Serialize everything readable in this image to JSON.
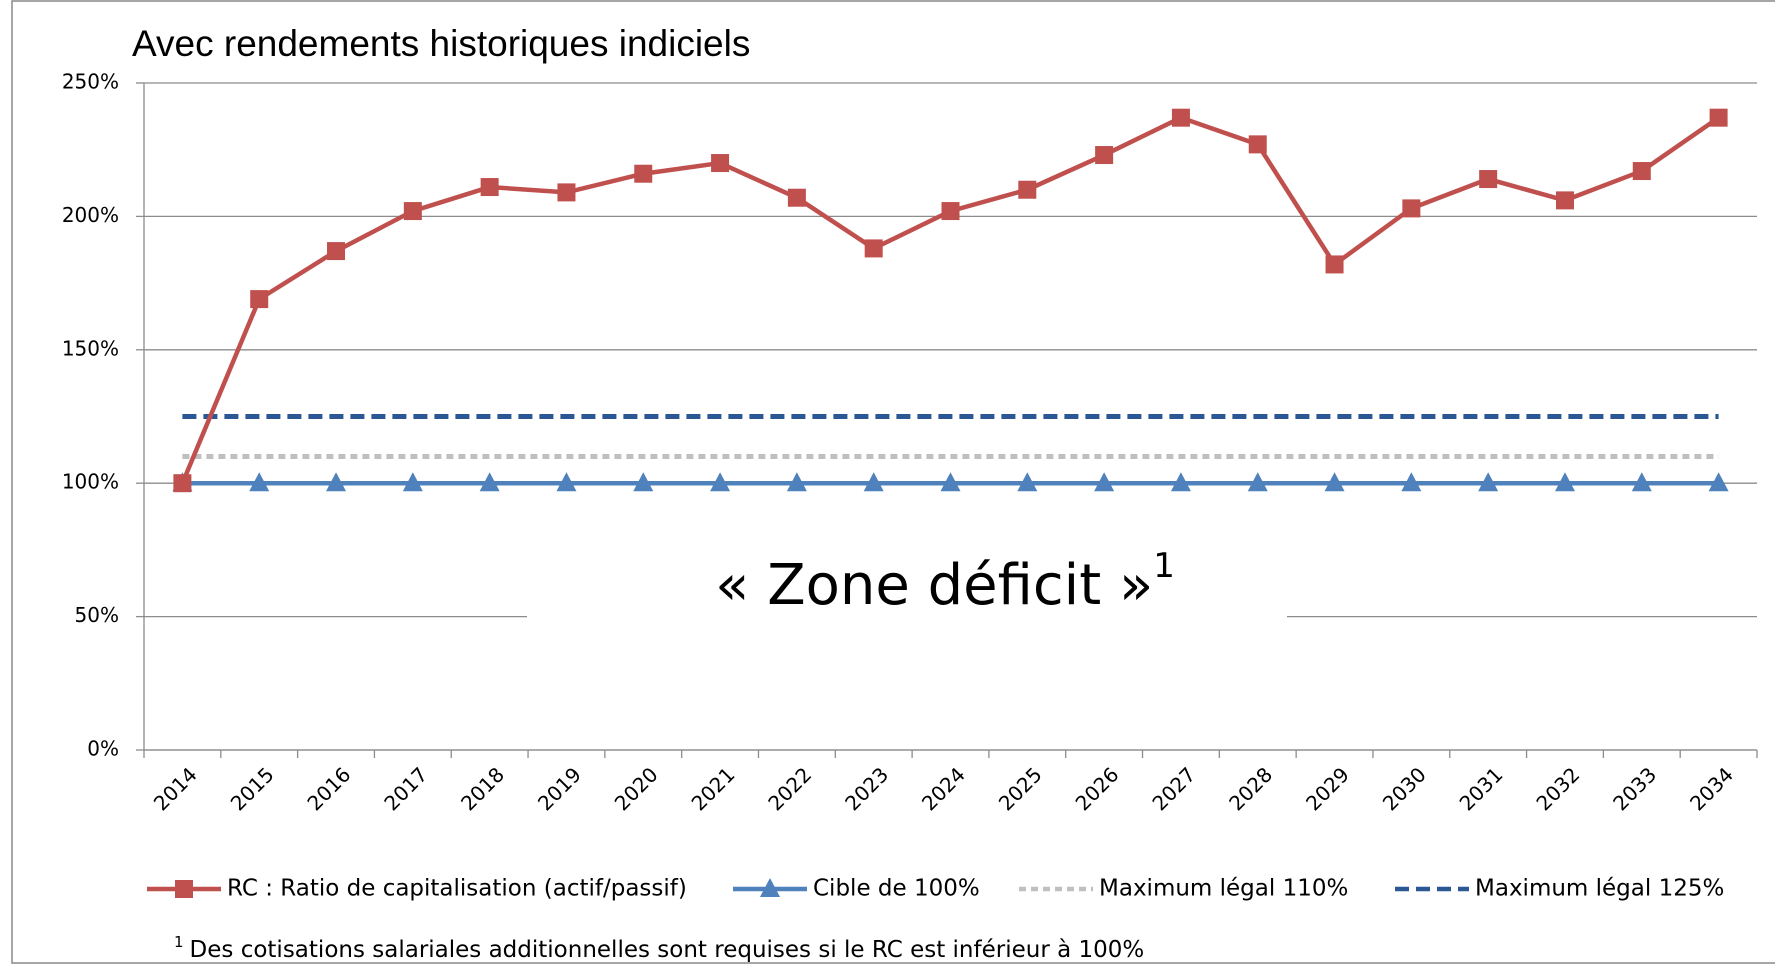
{
  "chart_data": {
    "type": "line",
    "subtitle": "Avec rendements historiques indiciels",
    "annotation": "« Zone déficit »",
    "annotation_note": "1",
    "footnote_marker": "1",
    "footnote": "Des cotisations salariales additionnelles sont requises si le RC est inférieur à 100%",
    "categories": [
      "2014",
      "2015",
      "2016",
      "2017",
      "2018",
      "2019",
      "2020",
      "2021",
      "2022",
      "2023",
      "2024",
      "2025",
      "2026",
      "2027",
      "2028",
      "2029",
      "2030",
      "2031",
      "2032",
      "2033",
      "2034"
    ],
    "series": [
      {
        "name": "RC : Ratio de capitalisation (actif/passif)",
        "color": "#c0504d",
        "marker": "square",
        "dash": "solid",
        "values": [
          100,
          169,
          187,
          202,
          211,
          209,
          216,
          220,
          207,
          188,
          202,
          210,
          223,
          237,
          227,
          182,
          203,
          214,
          206,
          217,
          237
        ]
      },
      {
        "name": "Cible de 100%",
        "color": "#4f81bd",
        "marker": "triangle",
        "dash": "solid",
        "values": [
          100,
          100,
          100,
          100,
          100,
          100,
          100,
          100,
          100,
          100,
          100,
          100,
          100,
          100,
          100,
          100,
          100,
          100,
          100,
          100,
          100
        ]
      },
      {
        "name": "Maximum légal 110%",
        "color": "#bfbfbf",
        "marker": null,
        "dash": "dotted",
        "values": [
          110,
          110,
          110,
          110,
          110,
          110,
          110,
          110,
          110,
          110,
          110,
          110,
          110,
          110,
          110,
          110,
          110,
          110,
          110,
          110,
          110
        ]
      },
      {
        "name": "Maximum légal 125%",
        "color": "#2b5794",
        "marker": null,
        "dash": "dashed",
        "values": [
          125,
          125,
          125,
          125,
          125,
          125,
          125,
          125,
          125,
          125,
          125,
          125,
          125,
          125,
          125,
          125,
          125,
          125,
          125,
          125,
          125
        ]
      }
    ],
    "ylim": [
      0,
      250
    ],
    "yticks": [
      {
        "value": 0,
        "label": "0%"
      },
      {
        "value": 50,
        "label": "50%"
      },
      {
        "value": 100,
        "label": "100%"
      },
      {
        "value": 150,
        "label": "150%"
      },
      {
        "value": 200,
        "label": "200%"
      },
      {
        "value": 250,
        "label": "250%"
      }
    ],
    "grid": true,
    "legend": "bottom"
  }
}
